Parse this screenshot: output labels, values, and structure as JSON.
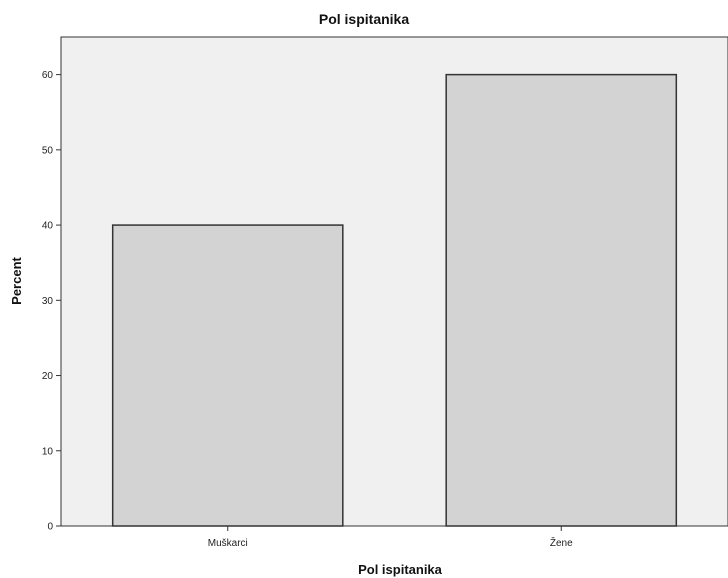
{
  "chart_data": {
    "type": "bar",
    "title": "Pol ispitanika",
    "xlabel": "Pol ispitanika",
    "ylabel": "Percent",
    "categories": [
      "Muškarci",
      "Žene"
    ],
    "values": [
      40,
      60
    ],
    "ylim": [
      0,
      65
    ],
    "yticks": [
      0,
      10,
      20,
      30,
      40,
      50,
      60
    ],
    "grid": false,
    "plot_background": "#f0f0f0",
    "bar_color": "#d3d3d3",
    "bar_edge_color": "#333333"
  }
}
